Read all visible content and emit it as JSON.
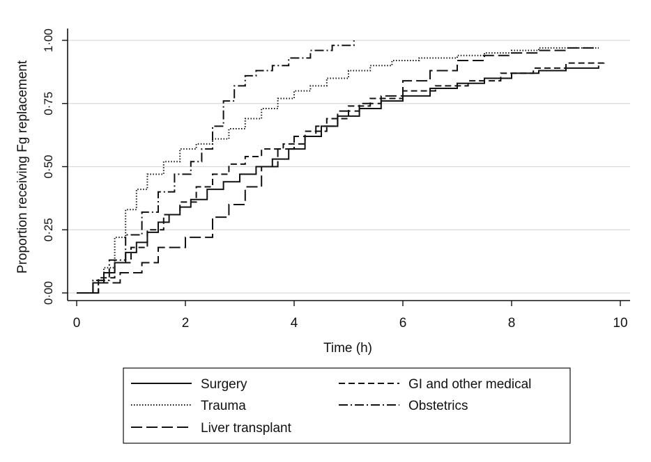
{
  "chart_data": {
    "type": "line",
    "step": true,
    "xlabel": "Time (h)",
    "ylabel": "Proportion receiving Fg replacement",
    "xlim": [
      0,
      10
    ],
    "ylim": [
      0,
      1
    ],
    "x_ticks": [
      {
        "value": 0,
        "label": "0"
      },
      {
        "value": 2,
        "label": "2"
      },
      {
        "value": 4,
        "label": "4"
      },
      {
        "value": 6,
        "label": "6"
      },
      {
        "value": 8,
        "label": "8"
      },
      {
        "value": 10,
        "label": "10"
      }
    ],
    "y_ticks": [
      {
        "value": 0,
        "label": "0·00"
      },
      {
        "value": 0.25,
        "label": "0·25"
      },
      {
        "value": 0.5,
        "label": "0·50"
      },
      {
        "value": 0.75,
        "label": "0·75"
      },
      {
        "value": 1,
        "label": "1·00"
      }
    ],
    "grid": "horizontal",
    "legend_position": "bottom",
    "series": [
      {
        "name": "Surgery",
        "style": "solid",
        "x": [
          0,
          0.3,
          0.5,
          0.7,
          0.9,
          1.1,
          1.3,
          1.5,
          1.7,
          1.9,
          2.1,
          2.4,
          2.7,
          3.0,
          3.3,
          3.6,
          3.9,
          4.2,
          4.5,
          4.8,
          5.2,
          5.6,
          6.0,
          6.5,
          7.0,
          7.5,
          8.0,
          8.5,
          9.0,
          9.6
        ],
        "y": [
          0,
          0.04,
          0.08,
          0.12,
          0.16,
          0.2,
          0.24,
          0.28,
          0.31,
          0.34,
          0.37,
          0.41,
          0.44,
          0.47,
          0.5,
          0.53,
          0.57,
          0.62,
          0.66,
          0.7,
          0.73,
          0.76,
          0.78,
          0.81,
          0.83,
          0.85,
          0.87,
          0.88,
          0.89,
          0.9
        ]
      },
      {
        "name": "Trauma",
        "style": "dotted",
        "x": [
          0,
          0.3,
          0.5,
          0.7,
          0.9,
          1.1,
          1.3,
          1.6,
          1.9,
          2.2,
          2.5,
          2.8,
          3.1,
          3.4,
          3.7,
          4.0,
          4.3,
          4.6,
          5.0,
          5.4,
          5.8,
          6.3,
          7.0,
          7.5,
          8.0,
          8.5,
          9.0,
          9.6
        ],
        "y": [
          0,
          0.04,
          0.1,
          0.22,
          0.33,
          0.41,
          0.47,
          0.52,
          0.57,
          0.59,
          0.61,
          0.65,
          0.69,
          0.73,
          0.77,
          0.8,
          0.82,
          0.85,
          0.88,
          0.9,
          0.92,
          0.93,
          0.94,
          0.95,
          0.96,
          0.97,
          0.97,
          0.97
        ]
      },
      {
        "name": "Liver transplant",
        "style": "longdash",
        "x": [
          0,
          0.4,
          0.8,
          1.2,
          1.5,
          2.0,
          2.5,
          2.8,
          3.1,
          3.4,
          3.7,
          4.0,
          4.4,
          4.8,
          5.2,
          5.6,
          6.0,
          6.5,
          7.0,
          7.5,
          8.0,
          8.5,
          9.0,
          9.6
        ],
        "y": [
          0,
          0.04,
          0.08,
          0.12,
          0.18,
          0.22,
          0.3,
          0.35,
          0.42,
          0.5,
          0.57,
          0.62,
          0.66,
          0.72,
          0.75,
          0.78,
          0.84,
          0.88,
          0.92,
          0.94,
          0.95,
          0.96,
          0.97,
          0.97
        ]
      },
      {
        "name": "GI and other medical",
        "style": "dash",
        "x": [
          0,
          0.4,
          0.7,
          1.0,
          1.3,
          1.6,
          1.9,
          2.2,
          2.5,
          2.8,
          3.1,
          3.4,
          3.8,
          4.2,
          4.6,
          5.0,
          5.4,
          6.0,
          6.6,
          7.2,
          7.8,
          8.4,
          9.0,
          9.7
        ],
        "y": [
          0,
          0.06,
          0.12,
          0.18,
          0.25,
          0.31,
          0.36,
          0.42,
          0.47,
          0.51,
          0.54,
          0.57,
          0.59,
          0.64,
          0.69,
          0.74,
          0.77,
          0.8,
          0.82,
          0.84,
          0.87,
          0.89,
          0.91,
          0.92
        ]
      },
      {
        "name": "Obstetrics",
        "style": "dashdot",
        "x": [
          0,
          0.3,
          0.6,
          0.9,
          1.2,
          1.5,
          1.8,
          2.1,
          2.3,
          2.5,
          2.7,
          2.9,
          3.1,
          3.3,
          3.6,
          3.9,
          4.3,
          4.7,
          5.1
        ],
        "y": [
          0,
          0.05,
          0.13,
          0.23,
          0.32,
          0.4,
          0.47,
          0.52,
          0.57,
          0.66,
          0.76,
          0.82,
          0.86,
          0.88,
          0.9,
          0.93,
          0.96,
          0.98,
          1.0
        ]
      }
    ]
  }
}
